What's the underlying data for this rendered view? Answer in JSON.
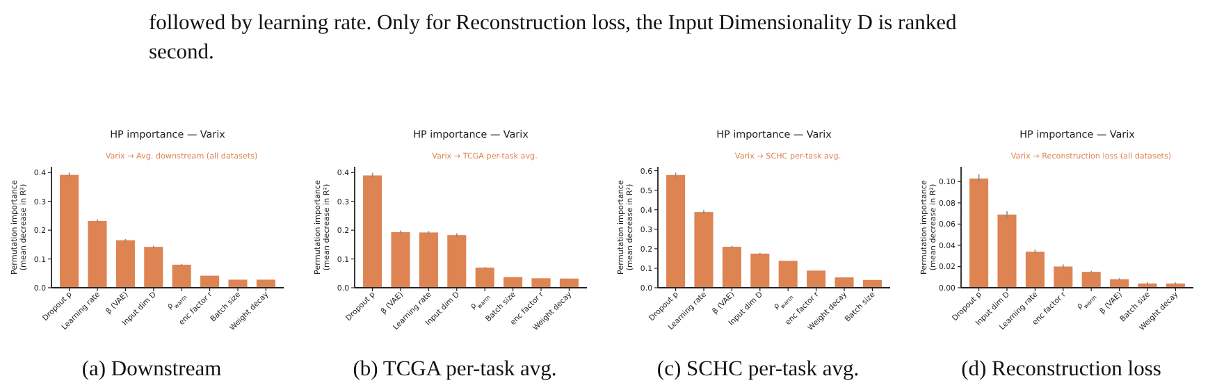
{
  "chart_data": [
    {
      "type": "other",
      "annotations": [
        "followed by learning rate. Only for Reconstruction loss, the Input Dimensionality D is ranked",
        "second."
      ]
    },
    {
      "type": "bar",
      "title": "HP importance — Varix",
      "subtitle": "Varix → Avg. downstream (all datasets)",
      "ylabel": "Permutation importance\n(mean decrease in R²)",
      "categories": [
        "Dropout p",
        "Learning rate",
        "β (VAE)",
        "Input dim D",
        "ρ$_{warm}$",
        "enc factor r",
        "Batch size",
        "Weight decay"
      ],
      "values": [
        0.392,
        0.232,
        0.165,
        0.142,
        0.08,
        0.042,
        0.028,
        0.028
      ],
      "errors": [
        0.008,
        0.005,
        0.004,
        0.004,
        0.002,
        null,
        null,
        null
      ],
      "color": "#dd8452",
      "ylim": [
        0,
        0.42
      ],
      "yticks": [
        {
          "value": 0,
          "label": "0.0"
        },
        {
          "value": 0.1,
          "label": "0.1"
        },
        {
          "value": 0.2,
          "label": "0.2"
        },
        {
          "value": 0.3,
          "label": "0.3"
        },
        {
          "value": 0.4,
          "label": "0.4"
        }
      ],
      "annotations": [
        "(a) Downstream"
      ]
    },
    {
      "type": "bar",
      "title": "HP importance — Varix",
      "subtitle": "Varix → TCGA per-task avg.",
      "ylabel": "Permutation importance\n(mean decrease in R²)",
      "categories": [
        "Dropout p",
        "β (VAE)",
        "Learning rate",
        "Input dim D",
        "ρ$_{warm}$",
        "Batch size",
        "enc factor r",
        "Weight decay"
      ],
      "values": [
        0.39,
        0.193,
        0.192,
        0.183,
        0.07,
        0.037,
        0.033,
        0.032
      ],
      "errors": [
        0.009,
        0.006,
        0.005,
        0.006,
        0.002,
        null,
        null,
        null
      ],
      "color": "#dd8452",
      "ylim": [
        0,
        0.42
      ],
      "yticks": [
        {
          "value": 0,
          "label": "0.0"
        },
        {
          "value": 0.1,
          "label": "0.1"
        },
        {
          "value": 0.2,
          "label": "0.2"
        },
        {
          "value": 0.3,
          "label": "0.3"
        },
        {
          "value": 0.4,
          "label": "0.4"
        }
      ],
      "annotations": [
        "(b) TCGA per-task avg."
      ]
    },
    {
      "type": "bar",
      "title": "HP importance — Varix",
      "subtitle": "Varix → SCHC per-task avg.",
      "ylabel": "Permutation importance\n(mean decrease in R²)",
      "categories": [
        "Dropout p",
        "Learning rate",
        "β (VAE)",
        "Input dim D",
        "ρ$_{warm}$",
        "enc factor r",
        "Weight decay",
        "Batch size"
      ],
      "values": [
        0.578,
        0.388,
        0.21,
        0.175,
        0.138,
        0.088,
        0.053,
        0.04
      ],
      "errors": [
        0.012,
        0.01,
        0.006,
        0.004,
        null,
        null,
        null,
        null
      ],
      "color": "#dd8452",
      "ylim": [
        0,
        0.62
      ],
      "yticks": [
        {
          "value": 0,
          "label": "0.0"
        },
        {
          "value": 0.1,
          "label": "0.1"
        },
        {
          "value": 0.2,
          "label": "0.2"
        },
        {
          "value": 0.3,
          "label": "0.3"
        },
        {
          "value": 0.4,
          "label": "0.4"
        },
        {
          "value": 0.5,
          "label": "0.5"
        },
        {
          "value": 0.6,
          "label": "0.6"
        }
      ],
      "annotations": [
        "(c) SCHC per-task avg."
      ]
    },
    {
      "type": "bar",
      "title": "HP importance — Varix",
      "subtitle": "Varix → Reconstruction loss (all datasets)",
      "ylabel": "Permutation importance\n(mean decrease in R²)",
      "categories": [
        "Dropout p",
        "Input dim D",
        "Learning rate",
        "enc factor r",
        "ρ$_{warm}$",
        "β (VAE)",
        "Batch size",
        "Weight decay"
      ],
      "values": [
        0.103,
        0.069,
        0.034,
        0.02,
        0.015,
        0.008,
        0.004,
        0.004
      ],
      "errors": [
        0.004,
        0.003,
        0.002,
        0.002,
        0.001,
        0.001,
        0.001,
        0.001
      ],
      "color": "#dd8452",
      "ylim": [
        0,
        0.114
      ],
      "yticks": [
        {
          "value": 0,
          "label": "0.00"
        },
        {
          "value": 0.02,
          "label": "0.02"
        },
        {
          "value": 0.04,
          "label": "0.04"
        },
        {
          "value": 0.06,
          "label": "0.06"
        },
        {
          "value": 0.08,
          "label": "0.08"
        },
        {
          "value": 0.1,
          "label": "0.10"
        }
      ],
      "annotations": [
        "(d) Reconstruction loss"
      ]
    }
  ]
}
